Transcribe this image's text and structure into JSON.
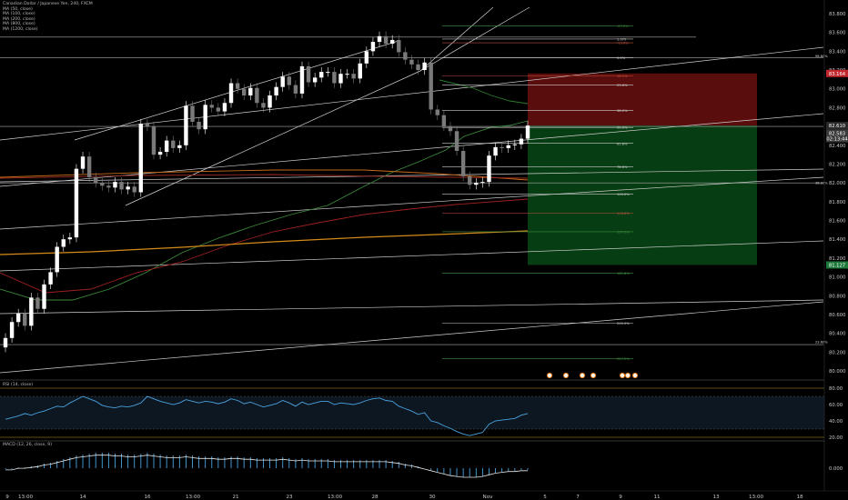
{
  "title": "Canadian Dollar / Japanese Yen, 240, FXCM",
  "legend_items": [
    "MA (50, close)",
    "MA (100, close)",
    "MA (200, close)",
    "MA (800, close)",
    "MA (1200, close)"
  ],
  "rsi_label": "RSI (14, close)",
  "macd_label": "MACD (12, 26, close, 9)",
  "price_axis": {
    "labels": [
      "83.800",
      "83.600",
      "83.400",
      "83.200",
      "83.000",
      "82.800",
      "82.600",
      "82.400",
      "82.200",
      "82.000",
      "81.800",
      "81.600",
      "81.400",
      "81.200",
      "81.000",
      "80.800",
      "80.600",
      "80.400",
      "80.200",
      "80.000"
    ],
    "min": 80.0,
    "max": 83.8
  },
  "price_tags": [
    {
      "name": "stop-tag",
      "value": "83.164",
      "color": "#c1272d"
    },
    {
      "name": "entry-tag",
      "value": "82.610",
      "color": "#2a2a2a"
    },
    {
      "name": "last-price-tag",
      "value": "82.583",
      "color": "#3a3a3a"
    },
    {
      "name": "countdown-tag",
      "value": "02:13:44",
      "color": "#3a3a3a"
    },
    {
      "name": "target-tag",
      "value": "81.127",
      "color": "#1e7a3b"
    }
  ],
  "rsi_axis": [
    "80.00",
    "60.00",
    "40.00",
    "20.00"
  ],
  "macd_axis": [
    "0.000"
  ],
  "time_axis": [
    "9",
    "13:00",
    "14",
    "16",
    "13:00",
    "21",
    "23",
    "13:00",
    "28",
    "30",
    "Nov",
    "5",
    "7",
    "9",
    "11",
    "13",
    "13:00",
    "18"
  ],
  "fib_levels": [
    {
      "label": "-27.2%",
      "price": 83.67,
      "color": "#3f8f3f"
    },
    {
      "label": "1.375",
      "price": 83.53,
      "color": "#c0c0c0"
    },
    {
      "label": "-13.6%",
      "price": 83.49,
      "color": "#c05040"
    },
    {
      "label": "0.0%",
      "price": 83.33,
      "color": "#cccccc"
    },
    {
      "label": "16.1%",
      "price": 83.14,
      "color": "#c05040"
    },
    {
      "label": "23.6%",
      "price": 83.04,
      "color": "#cccccc"
    },
    {
      "label": "38.2%",
      "price": 82.77,
      "color": "#cccccc"
    },
    {
      "label": "50.0%",
      "price": 82.59,
      "color": "#cccccc"
    },
    {
      "label": "61.8%",
      "price": 82.42,
      "color": "#cccccc"
    },
    {
      "label": "78.6%",
      "price": 82.17,
      "color": "#cccccc"
    },
    {
      "label": "100.0%",
      "price": 81.88,
      "color": "#cccccc"
    },
    {
      "label": "113.6%",
      "price": 81.68,
      "color": "#c05040"
    },
    {
      "label": "127.2%",
      "price": 81.48,
      "color": "#3f8f3f"
    },
    {
      "label": "161.8%",
      "price": 81.04,
      "color": "#3f8f3f"
    },
    {
      "label": "200.0%",
      "price": 80.51,
      "color": "#cccccc"
    },
    {
      "label": "227.2%",
      "price": 80.13,
      "color": "#3f8f3f"
    }
  ],
  "side_labels": [
    {
      "label": "98.60%",
      "price": 83.35
    },
    {
      "label": "38.20%",
      "price": 82.0
    },
    {
      "label": "23.60%",
      "price": 80.31
    }
  ],
  "colors": {
    "up": "#ffffff",
    "down": "#7a7a7a",
    "rsi": "#4aa3df",
    "macd": "#4aa3df",
    "stop": "#5a0d0d",
    "target": "#073d12",
    "ma50": "#3b8a3b",
    "ma100": "#9e2020",
    "ma200": "#d68a1a"
  }
}
